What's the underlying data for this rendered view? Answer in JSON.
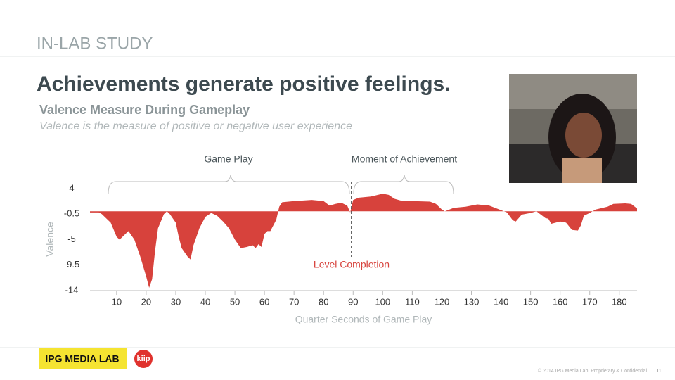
{
  "header": {
    "section": "IN-LAB STUDY",
    "title": "Achievements generate positive feelings.",
    "subtitle": "Valence Measure During Gameplay",
    "description": "Valence is the measure of positive or negative user experience"
  },
  "chart_data": {
    "type": "area",
    "xlabel": "Quarter Seconds of Game Play",
    "ylabel": "Valence",
    "color": "#d7423c",
    "annotations": [
      "Game Play",
      "Moment of Achievement",
      "Level Completion"
    ],
    "x": [
      1,
      4,
      5,
      8,
      10,
      11,
      12,
      14,
      16,
      18,
      20,
      21,
      22,
      23,
      24,
      26,
      27,
      28,
      30,
      31,
      32,
      34,
      35,
      36,
      38,
      40,
      42,
      44,
      46,
      48,
      50,
      52,
      54,
      56,
      57,
      58,
      59,
      60,
      61,
      62,
      64,
      65,
      66,
      70,
      76,
      80,
      82,
      84,
      86,
      88,
      89,
      90,
      92,
      96,
      100,
      102,
      104,
      106,
      110,
      116,
      118,
      120,
      121,
      124,
      128,
      132,
      136,
      140,
      142,
      144,
      145,
      147,
      150,
      152,
      153,
      155,
      156,
      157,
      160,
      162,
      164,
      166,
      167,
      168,
      170,
      172,
      176,
      178,
      182,
      184,
      186
    ],
    "values": [
      -0.2,
      -0.2,
      -0.5,
      -2,
      -4.5,
      -5,
      -4.5,
      -3.5,
      -5,
      -8,
      -11.5,
      -13.5,
      -12,
      -7,
      -3,
      -0.5,
      0,
      -0.5,
      -2,
      -4.5,
      -6.5,
      -8,
      -8.5,
      -6,
      -3,
      -1,
      -0.3,
      -0.8,
      -1.8,
      -3,
      -5,
      -6.5,
      -6.3,
      -6,
      -6.5,
      -5.8,
      -6.3,
      -4,
      -3.5,
      -3.5,
      -1.5,
      0.8,
      1.6,
      1.8,
      2,
      1.8,
      1,
      1.3,
      1.5,
      1,
      -0.2,
      2,
      2.4,
      2.6,
      3.1,
      2.9,
      2.2,
      1.9,
      1.8,
      1.7,
      1.3,
      0.3,
      0,
      0.6,
      0.8,
      1.2,
      1,
      0.2,
      -0.2,
      -1.6,
      -1.8,
      -0.6,
      -0.3,
      0,
      -0.4,
      -1.2,
      -1.3,
      -2.2,
      -1.8,
      -2,
      -3.3,
      -3.4,
      -2.5,
      -0.8,
      -0.3,
      0.3,
      0.8,
      1.3,
      1.4,
      1.3,
      0.5
    ],
    "xlim": [
      1,
      186
    ],
    "xticks": [
      10,
      20,
      30,
      40,
      50,
      60,
      70,
      80,
      90,
      100,
      110,
      120,
      130,
      140,
      150,
      160,
      170,
      180
    ],
    "ylim": [
      -14,
      4
    ],
    "yticks": [
      4,
      -0.5,
      -5,
      -9.5,
      -14
    ]
  },
  "footer": {
    "brand": "IPG MEDIA LAB",
    "logo": "kiip",
    "copyright": "© 2014 IPG Media Lab. Proprietary & Confidential",
    "page": "11"
  }
}
